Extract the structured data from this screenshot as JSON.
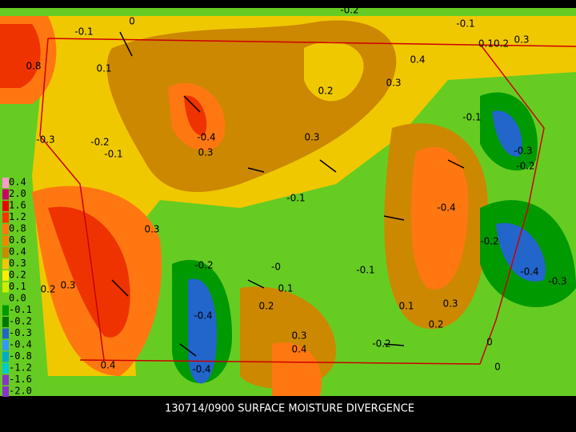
{
  "caption": "130714/0900 SURFACE MOISTURE DIVERGENCE",
  "legend": {
    "labels": [
      "0.4",
      "2.0",
      "1.6",
      "1.2",
      "0.8",
      "0.6",
      "0.4",
      "0.3",
      "0.2",
      "0.1",
      "0.0",
      "-0.1",
      "-0.2",
      "-0.3",
      "-0.4",
      "-0.8",
      "-1.2",
      "-1.6",
      "-2.0"
    ]
  },
  "contour_labels": [
    "0",
    "-0.1",
    "0.8",
    "0.1",
    "-0.2",
    "-0.1",
    "0.10.2",
    "0.3",
    "0.4",
    "0.3",
    "0.2",
    "-0.4",
    "0.3",
    "0.3",
    "-0.2",
    "-0.1",
    "-0.1",
    "-0.3",
    "-0.1",
    "0.3",
    "-0.4",
    "-0.2",
    "-0.2",
    "-0",
    "-0.1",
    "0.2",
    "0.3",
    "0.1",
    "0.2",
    "0.1",
    "0.3",
    "0.2",
    "-0.4",
    "0.3",
    "0.4",
    "-0.2",
    "0",
    "0.4",
    "-0.4",
    "0",
    "-0.4",
    "-0.3",
    "-0.3",
    "-0.2"
  ]
}
